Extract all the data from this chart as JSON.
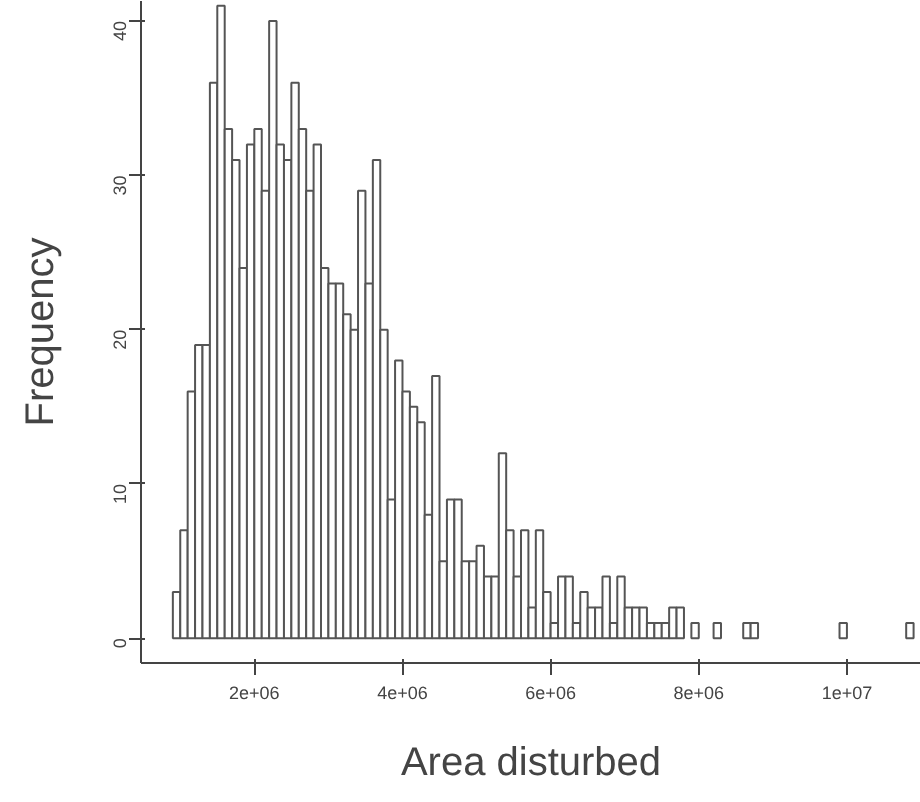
{
  "chart_data": {
    "type": "histogram",
    "xlabel": "Area disturbed",
    "ylabel": "Frequency",
    "bins": [
      900000,
      1000000,
      1100000,
      1200000,
      1300000,
      1400000,
      1500000,
      1600000,
      1700000,
      1800000,
      1900000,
      2000000,
      2100000,
      2200000,
      2300000,
      2400000,
      2500000,
      2600000,
      2700000,
      2800000,
      2900000,
      3000000,
      3100000,
      3200000,
      3300000,
      3400000,
      3500000,
      3600000,
      3700000,
      3800000,
      3900000,
      4000000,
      4100000,
      4200000,
      4300000,
      4400000,
      4500000,
      4600000,
      4700000,
      4800000,
      4900000,
      5000000,
      5100000,
      5200000,
      5300000,
      5400000,
      5500000,
      5600000,
      5700000,
      5800000,
      5900000,
      6000000,
      6100000,
      6200000,
      6300000,
      6400000,
      6500000,
      6600000,
      6700000,
      6800000,
      6900000,
      7000000,
      7100000,
      7200000,
      7300000,
      7400000,
      7500000,
      7600000,
      7700000,
      7800000,
      7900000,
      8000000,
      8100000,
      8200000,
      8300000,
      8400000,
      8500000,
      8600000,
      8700000,
      8800000,
      8900000,
      9000000,
      9100000,
      9200000,
      9300000,
      9400000,
      9500000,
      9600000,
      9700000,
      9800000,
      9900000,
      10000000,
      10100000,
      10200000,
      10300000,
      10400000,
      10500000,
      10600000,
      10700000,
      10800000,
      10900000
    ],
    "values": [
      3,
      7,
      16,
      19,
      19,
      36,
      41,
      33,
      31,
      24,
      32,
      33,
      29,
      40,
      32,
      31,
      36,
      33,
      29,
      32,
      24,
      23,
      23,
      21,
      20,
      29,
      23,
      31,
      20,
      9,
      18,
      16,
      15,
      14,
      8,
      17,
      5,
      9,
      9,
      5,
      5,
      6,
      4,
      4,
      12,
      7,
      4,
      7,
      2,
      7,
      3,
      1,
      4,
      4,
      1,
      3,
      2,
      2,
      4,
      1,
      4,
      2,
      2,
      2,
      1,
      1,
      1,
      2,
      2,
      0,
      1,
      0,
      0,
      1,
      0,
      0,
      0,
      1,
      1,
      0,
      0,
      0,
      0,
      0,
      0,
      0,
      0,
      0,
      0,
      0,
      1,
      0,
      0,
      0,
      0,
      0,
      0,
      0,
      0,
      1
    ],
    "color": "#ffffff",
    "xlim": [
      470000,
      11000000
    ],
    "ylim": [
      -1.6,
      41.3
    ],
    "xticks": [
      {
        "value": 2000000,
        "label": "2e+06"
      },
      {
        "value": 4000000,
        "label": "4e+06"
      },
      {
        "value": 6000000,
        "label": "6e+06"
      },
      {
        "value": 8000000,
        "label": "8e+06"
      },
      {
        "value": 10000000,
        "label": "1e+07"
      }
    ],
    "yticks": [
      0,
      10,
      20,
      30,
      40
    ],
    "grid": false
  }
}
